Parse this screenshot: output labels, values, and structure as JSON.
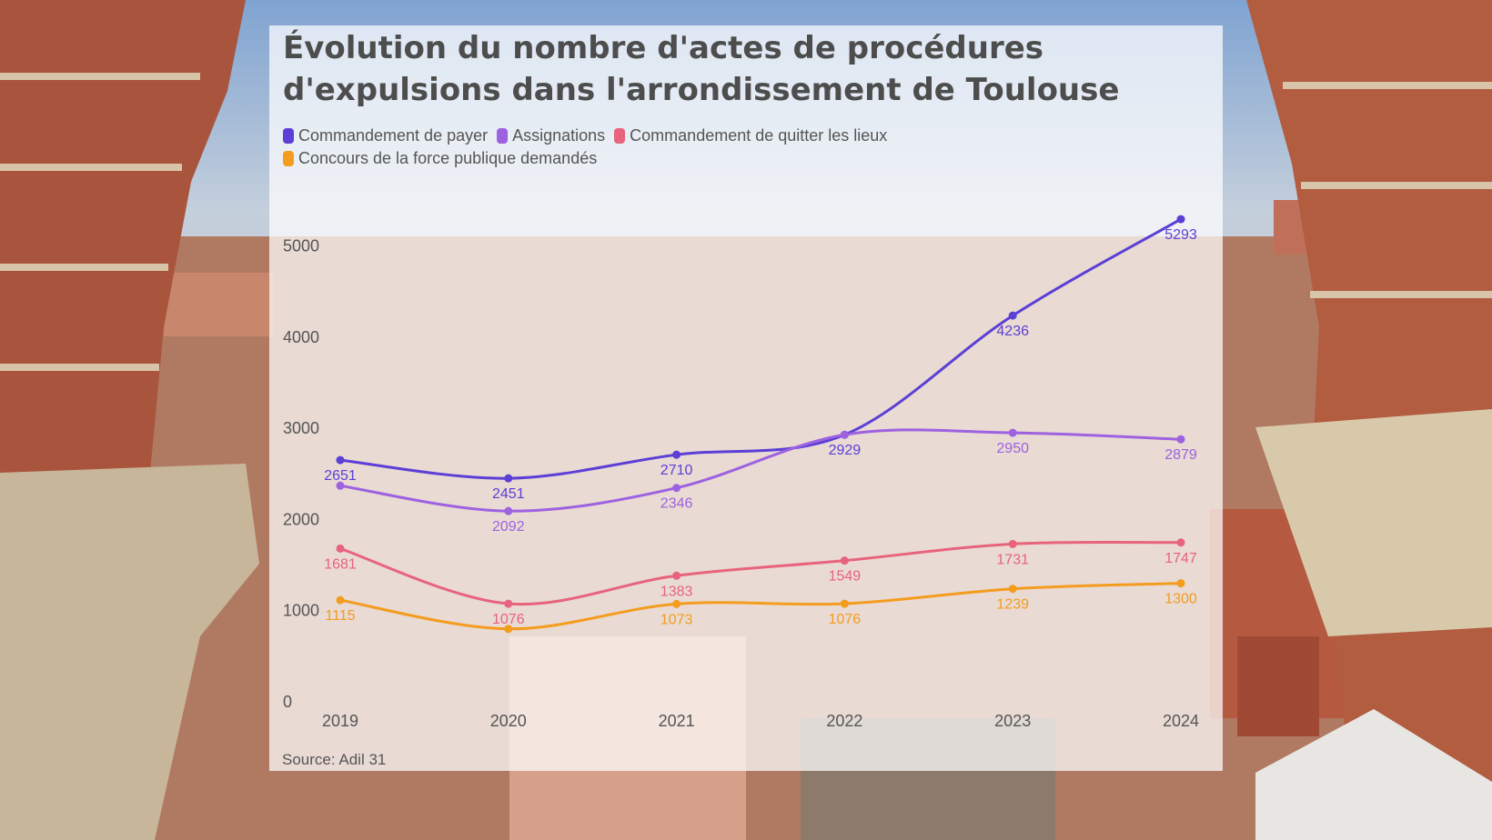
{
  "title_line1": "Évolution du nombre d'actes de procédures",
  "title_line2": "d'expulsions dans l'arrondissement de Toulouse",
  "source": "Source: Adil 31",
  "colors": {
    "background_sky": "#9fb4cc",
    "brick": "#b5553a",
    "card": "#ffffff",
    "text": "#4d4d4d"
  },
  "chart_data": {
    "type": "line",
    "x": [
      "2019",
      "2020",
      "2021",
      "2022",
      "2023",
      "2024"
    ],
    "yticks": [
      0,
      1000,
      2000,
      3000,
      4000,
      5000
    ],
    "ylim": [
      0,
      5500
    ],
    "grid": false,
    "legend_position": "top-left",
    "series": [
      {
        "name": "Commandement de payer",
        "color": "#5b3fd6",
        "values": [
          2651,
          2451,
          2710,
          2929,
          4236,
          5293
        ]
      },
      {
        "name": "Assignations",
        "color": "#9d62e0",
        "values": [
          2370,
          2092,
          2346,
          2929,
          2950,
          2879
        ]
      },
      {
        "name": "Commandement de quitter les lieux",
        "color": "#e8637e",
        "values": [
          1681,
          1076,
          1383,
          1549,
          1731,
          1747
        ]
      },
      {
        "name": "Concours de la force publique demandés",
        "color": "#f39c1e",
        "values": [
          1115,
          800,
          1073,
          1076,
          1239,
          1300
        ]
      }
    ],
    "labels": [
      [
        "2651",
        "2451",
        "2710",
        "2929",
        "4236",
        "5293"
      ],
      [
        "",
        "2092",
        "2346",
        "",
        "2950",
        "2879"
      ],
      [
        "1681",
        "1076",
        "1383",
        "1549",
        "1731",
        "1747"
      ],
      [
        "1115",
        "",
        "1073",
        "1076",
        "1239",
        "1300"
      ]
    ]
  }
}
